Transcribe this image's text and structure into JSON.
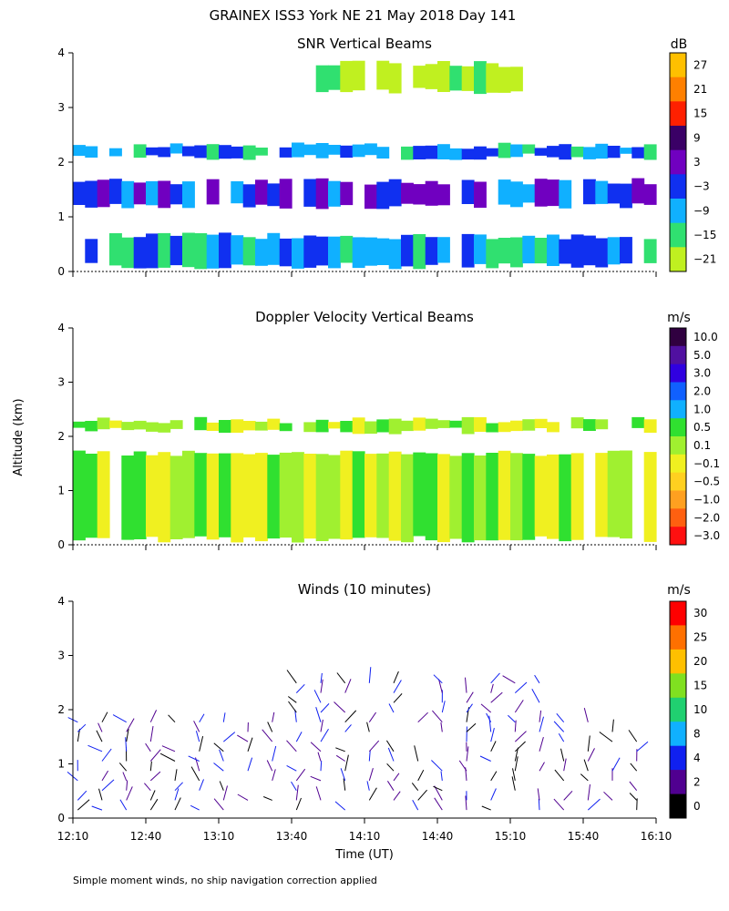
{
  "figure": {
    "title": "GRAINEX ISS3 York NE  21 May 2018 Day 141",
    "ylabel": "Altitude (km)",
    "xlabel": "Time (UT)",
    "footnote": "Simple moment winds, no ship navigation correction applied"
  },
  "chart_data": [
    {
      "type": "heatmap",
      "title": "SNR Vertical Beams",
      "unit": "dB",
      "xlim": [
        0,
        240
      ],
      "ylim": [
        0,
        4
      ],
      "yticks": [
        0,
        1,
        2,
        3,
        4
      ],
      "colorbar": {
        "labels": [
          "27",
          "21",
          "15",
          "9",
          "3",
          "−3",
          "−9",
          "−15",
          "−21"
        ],
        "colors": [
          "#ffc000",
          "#ff8000",
          "#ff2000",
          "#3a0066",
          "#7000c0",
          "#1030f0",
          "#10b0ff",
          "#30e070",
          "#c0f020"
        ]
      },
      "layers": [
        {
          "name": "boundary-layer-low",
          "range_km": [
            0.1,
            0.65
          ],
          "snr_db": -9
        },
        {
          "name": "boundary-layer-top",
          "range_km": [
            1.2,
            1.65
          ],
          "snr_db": -3
        },
        {
          "name": "elevated-layer",
          "range_km": [
            2.1,
            2.3
          ],
          "snr_db": -9
        },
        {
          "name": "clear-air-top",
          "range_km": [
            3.3,
            3.8
          ],
          "snr_db": -21
        }
      ]
    },
    {
      "type": "heatmap",
      "title": "Doppler Velocity Vertical Beams",
      "unit": "m/s",
      "xlim": [
        0,
        240
      ],
      "ylim": [
        0,
        4
      ],
      "yticks": [
        0,
        1,
        2,
        3,
        4
      ],
      "colorbar": {
        "labels": [
          "10.0",
          "5.0",
          "3.0",
          "2.0",
          "1.0",
          "0.5",
          "0.1",
          "−0.1",
          "−0.5",
          "−1.0",
          "−2.0",
          "−3.0"
        ],
        "colors": [
          "#300040",
          "#5010a0",
          "#3000e0",
          "#1060ff",
          "#10b0ff",
          "#30e030",
          "#a0f030",
          "#f0f020",
          "#ffd020",
          "#ffa020",
          "#ff6010",
          "#ff1010"
        ]
      },
      "layers": [
        {
          "name": "mixed-layer",
          "range_km": [
            0.1,
            1.7
          ],
          "velocity_ms": -0.1
        },
        {
          "name": "elevated-layer",
          "range_km": [
            2.1,
            2.3
          ],
          "velocity_ms": -0.1
        }
      ]
    },
    {
      "type": "wind_barbs",
      "title": "Winds (10 minutes)",
      "unit": "m/s",
      "interval_min": 10,
      "xlim": [
        0,
        240
      ],
      "ylim": [
        0,
        4
      ],
      "yticks": [
        0,
        1,
        2,
        3,
        4
      ],
      "xticks": [
        "12:10",
        "12:40",
        "13:10",
        "13:40",
        "14:10",
        "14:40",
        "15:10",
        "15:40",
        "16:10"
      ],
      "colorbar": {
        "labels": [
          "30",
          "25",
          "20",
          "15",
          "10",
          "8",
          "4",
          "2",
          "0"
        ],
        "colors": [
          "#ff0000",
          "#ff7000",
          "#ffc000",
          "#80e020",
          "#20d070",
          "#10b0ff",
          "#1020f0",
          "#500090",
          "#000000"
        ]
      }
    }
  ]
}
